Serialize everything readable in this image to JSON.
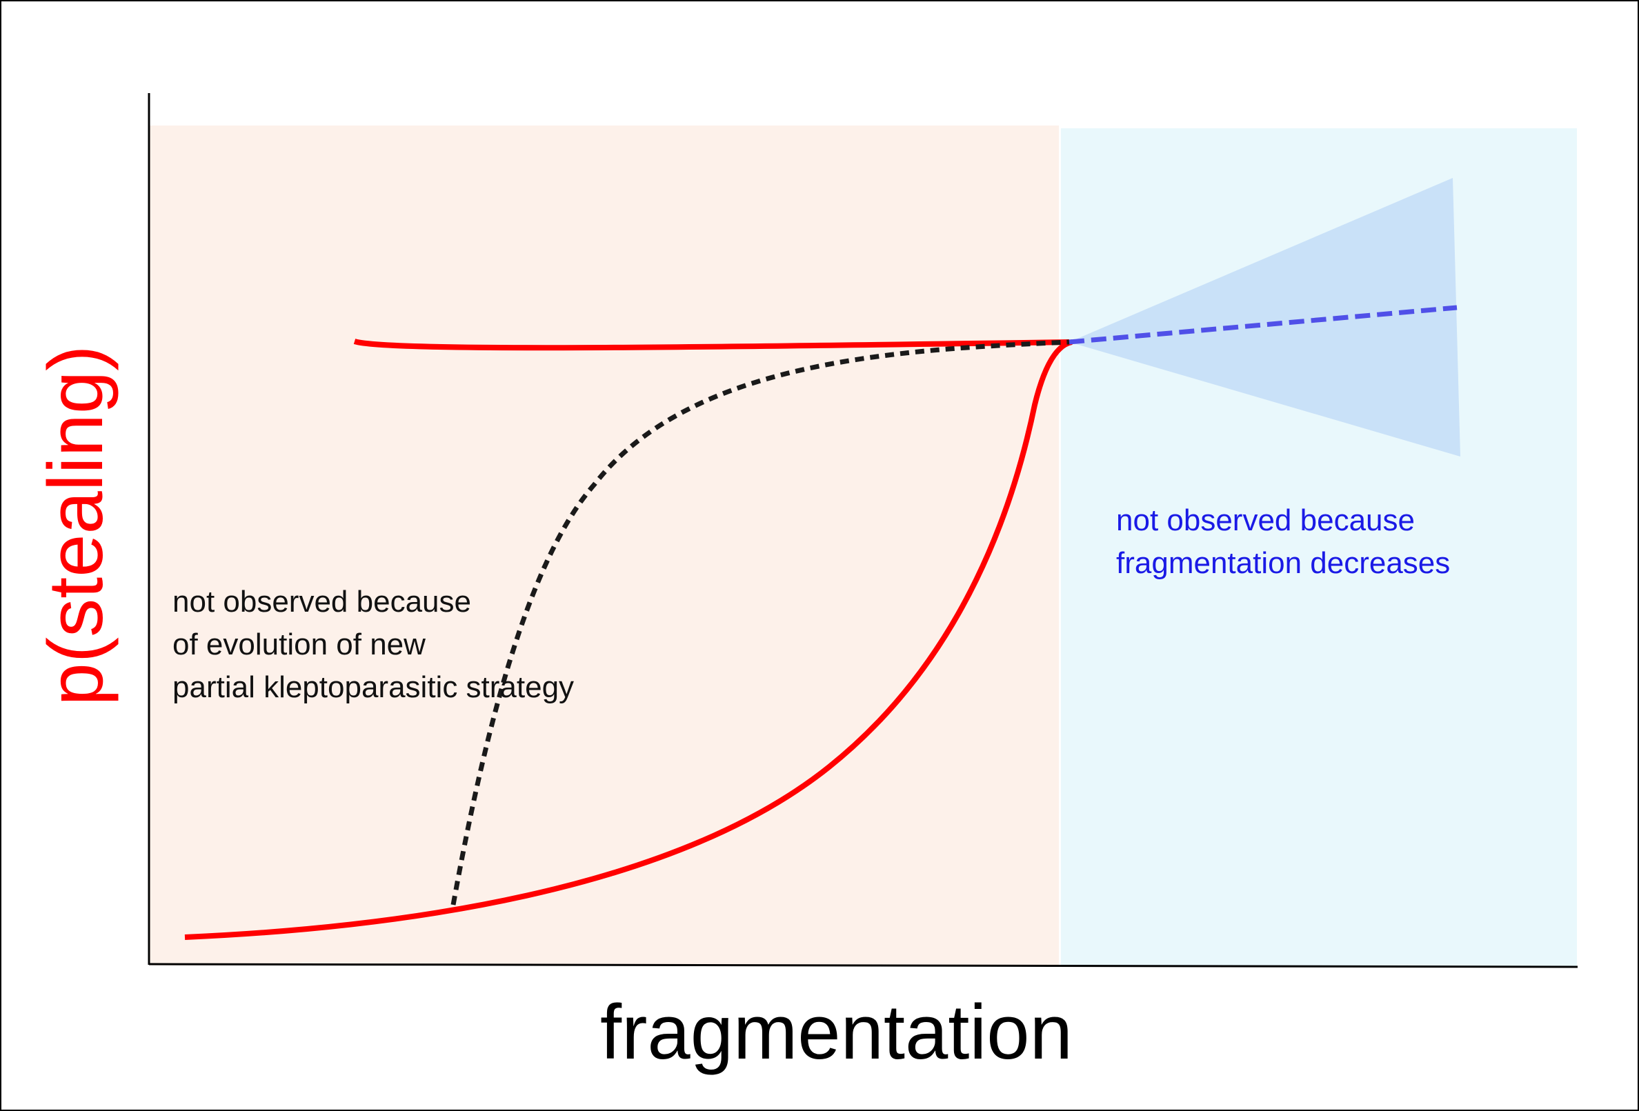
{
  "axes": {
    "xlabel": "fragmentation",
    "ylabel": "p(stealing)"
  },
  "annotations": {
    "left": {
      "lines": [
        "not observed because",
        "of evolution of new",
        "partial kleptoparasitic strategy"
      ]
    },
    "right": {
      "lines": [
        "not observed because",
        "fragmentation decreases"
      ]
    }
  },
  "colors": {
    "left_region": "#fdf1ea",
    "right_region": "#e9f8fc",
    "wedge": "#c9e1f8",
    "red_curve": "#ff0000",
    "dotted_curve": "#1a1a1a",
    "blue_dashed": "#5050e8",
    "ylabel": "#ff0000",
    "right_annotation": "#1a1ae6"
  }
}
